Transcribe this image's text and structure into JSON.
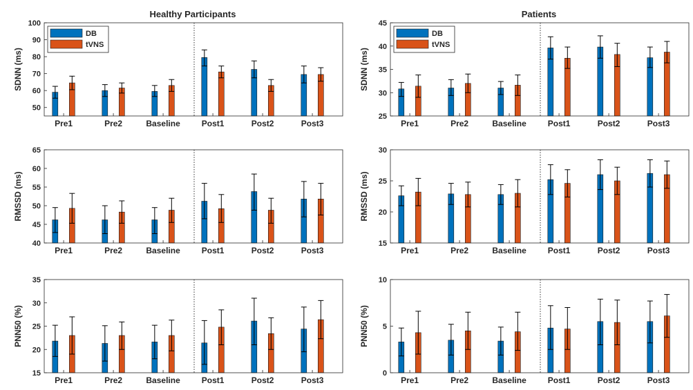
{
  "titles": {
    "left": "Healthy Participants",
    "right": "Patients"
  },
  "colors": {
    "DB": "#0072BD",
    "tVNS": "#D95319"
  },
  "chart_data": [
    {
      "type": "bar",
      "title": "Healthy Participants",
      "xlabel": "",
      "ylabel": "SDNN (ms)",
      "categories": [
        "Pre1",
        "Pre2",
        "Baseline",
        "Post1",
        "Post2",
        "Post3"
      ],
      "ylim": [
        45,
        100
      ],
      "yticks": [
        50,
        60,
        70,
        80,
        90,
        100
      ],
      "grid": false,
      "legend": "top-left",
      "series": [
        {
          "name": "DB",
          "values": [
            59,
            60,
            59.5,
            79.5,
            72.5,
            69.5
          ],
          "err_low": [
            55.5,
            56.5,
            56.5,
            74.5,
            67.5,
            64.5
          ],
          "err_high": [
            62.5,
            63.5,
            63,
            84,
            77.5,
            74.5
          ]
        },
        {
          "name": "tVNS",
          "values": [
            64.5,
            61.5,
            63,
            71,
            63,
            69.5
          ],
          "err_low": [
            60.5,
            58.5,
            59.5,
            67.5,
            59.5,
            65.5
          ],
          "err_high": [
            68.5,
            64.5,
            66.5,
            74.5,
            66.5,
            73.5
          ]
        }
      ]
    },
    {
      "type": "bar",
      "title": "Patients",
      "xlabel": "",
      "ylabel": "SDNN (ms)",
      "categories": [
        "Pre1",
        "Pre2",
        "Baseline",
        "Post1",
        "Post2",
        "Post3"
      ],
      "ylim": [
        25,
        45
      ],
      "yticks": [
        25,
        30,
        35,
        40,
        45
      ],
      "grid": false,
      "legend": "top-left",
      "series": [
        {
          "name": "DB",
          "values": [
            30.8,
            31,
            31,
            39.6,
            39.8,
            37.5
          ],
          "err_low": [
            29.2,
            29.4,
            29.6,
            37.2,
            37.4,
            35.4
          ],
          "err_high": [
            32.2,
            32.8,
            32.4,
            42,
            42.2,
            39.8
          ]
        },
        {
          "name": "tVNS",
          "values": [
            31.4,
            32,
            31.6,
            37.4,
            38.2,
            38.7
          ],
          "err_low": [
            29,
            30,
            29.4,
            35.2,
            35.6,
            36.4
          ],
          "err_high": [
            33.8,
            34,
            33.8,
            39.8,
            40.6,
            41
          ]
        }
      ]
    },
    {
      "type": "bar",
      "title": "",
      "xlabel": "",
      "ylabel": "RMSSD (ms)",
      "categories": [
        "Pre1",
        "Pre2",
        "Baseline",
        "Post1",
        "Post2",
        "Post3"
      ],
      "ylim": [
        40,
        65
      ],
      "yticks": [
        40,
        45,
        50,
        55,
        60,
        65
      ],
      "grid": false,
      "series": [
        {
          "name": "DB",
          "values": [
            46.2,
            46.2,
            46.2,
            51.2,
            53.8,
            51.8
          ],
          "err_low": [
            42.8,
            42.5,
            42.5,
            46.5,
            48.8,
            47
          ],
          "err_high": [
            49.5,
            50,
            49.5,
            56,
            58.5,
            56.5
          ]
        },
        {
          "name": "tVNS",
          "values": [
            49.3,
            48.3,
            48.8,
            49.2,
            48.8,
            51.8
          ],
          "err_low": [
            45.3,
            45.3,
            45.5,
            45.5,
            45.3,
            47.5
          ],
          "err_high": [
            53.3,
            51.3,
            52,
            53,
            52,
            56
          ]
        }
      ]
    },
    {
      "type": "bar",
      "title": "",
      "xlabel": "",
      "ylabel": "RMSSD (ms)",
      "categories": [
        "Pre1",
        "Pre2",
        "Baseline",
        "Post1",
        "Post2",
        "Post3"
      ],
      "ylim": [
        15,
        30
      ],
      "yticks": [
        15,
        20,
        25,
        30
      ],
      "grid": false,
      "series": [
        {
          "name": "DB",
          "values": [
            22.6,
            22.9,
            22.8,
            25.2,
            26,
            26.2
          ],
          "err_low": [
            21,
            21.2,
            21.2,
            22.8,
            23.6,
            24
          ],
          "err_high": [
            24.2,
            24.6,
            24.4,
            27.6,
            28.4,
            28.4
          ]
        },
        {
          "name": "tVNS",
          "values": [
            23.2,
            22.8,
            23,
            24.6,
            25,
            26
          ],
          "err_low": [
            21,
            20.8,
            20.8,
            22.4,
            22.8,
            23.8
          ],
          "err_high": [
            25.4,
            24.8,
            25.2,
            26.8,
            27.2,
            28.2
          ]
        }
      ]
    },
    {
      "type": "bar",
      "title": "",
      "xlabel": "",
      "ylabel": "PNN50 (%)",
      "categories": [
        "Pre1",
        "Pre2",
        "Baseline",
        "Post1",
        "Post2",
        "Post3"
      ],
      "ylim": [
        15,
        35
      ],
      "yticks": [
        15,
        20,
        25,
        30,
        35
      ],
      "grid": false,
      "series": [
        {
          "name": "DB",
          "values": [
            21.8,
            21.3,
            21.6,
            21.4,
            26.1,
            24.4
          ],
          "err_low": [
            18.5,
            17.5,
            18,
            16.8,
            21,
            19.5
          ],
          "err_high": [
            25.2,
            25.1,
            25.2,
            26.2,
            31,
            29.1
          ]
        },
        {
          "name": "tVNS",
          "values": [
            23,
            23,
            23,
            24.8,
            23.4,
            26.4
          ],
          "err_low": [
            19,
            20,
            19.7,
            21,
            20,
            22.3
          ],
          "err_high": [
            27,
            25.9,
            26.3,
            28.5,
            26.8,
            30.5
          ]
        }
      ]
    },
    {
      "type": "bar",
      "title": "",
      "xlabel": "",
      "ylabel": "PNN50 (%)",
      "categories": [
        "Pre1",
        "Pre2",
        "Baseline",
        "Post1",
        "Post2",
        "Post3"
      ],
      "ylim": [
        0,
        10
      ],
      "yticks": [
        0,
        5,
        10
      ],
      "grid": false,
      "series": [
        {
          "name": "DB",
          "values": [
            3.3,
            3.5,
            3.4,
            4.8,
            5.5,
            5.5
          ],
          "err_low": [
            1.8,
            1.9,
            1.9,
            2.5,
            3,
            3.2
          ],
          "err_high": [
            4.8,
            5.2,
            4.9,
            7.2,
            7.9,
            7.7
          ]
        },
        {
          "name": "tVNS",
          "values": [
            4.3,
            4.5,
            4.4,
            4.7,
            5.4,
            6.1
          ],
          "err_low": [
            2,
            2.5,
            2.4,
            2.5,
            3,
            3.8
          ],
          "err_high": [
            6.6,
            6.5,
            6.5,
            7,
            7.8,
            8.4
          ]
        }
      ]
    }
  ]
}
